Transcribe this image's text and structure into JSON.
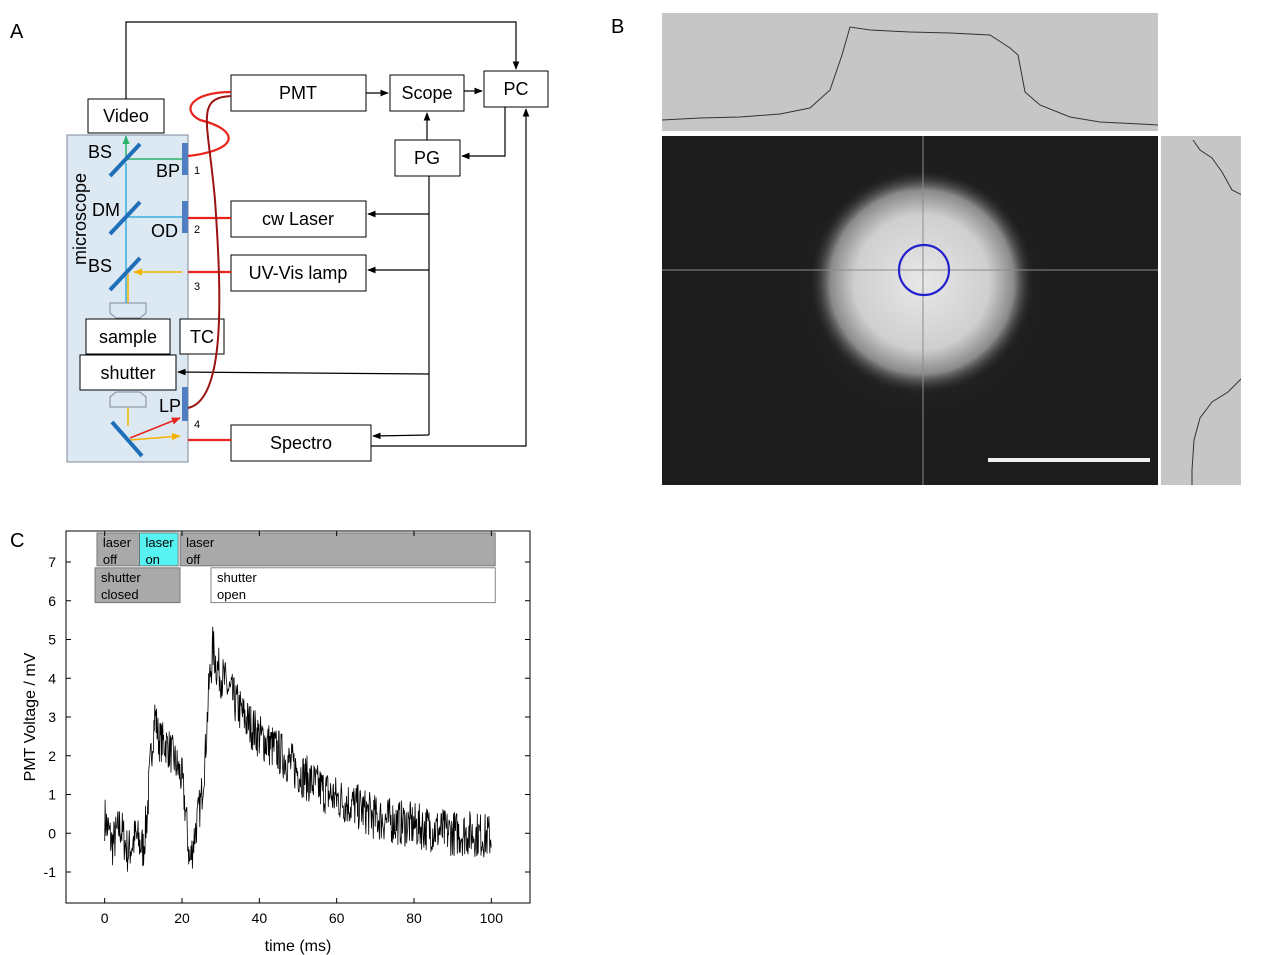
{
  "panels": {
    "a": {
      "letter": "A",
      "microscope_label": "microscope",
      "boxes": {
        "video": "Video",
        "pmt": "PMT",
        "scope": "Scope",
        "pc": "PC",
        "pg": "PG",
        "cw_laser": "cw Laser",
        "uv_lamp": "UV-Vis lamp",
        "sample": "sample",
        "tc": "TC",
        "shutter": "shutter",
        "spectro": "Spectro"
      },
      "optics": {
        "bs1": "BS",
        "bp": "BP",
        "dm": "DM",
        "od": "OD",
        "bs2": "BS",
        "lp": "LP"
      },
      "ports": [
        "1",
        "2",
        "3",
        "4"
      ]
    },
    "b": {
      "letter": "B"
    },
    "c": {
      "letter": "C"
    }
  },
  "chart_data": {
    "type": "line",
    "xlabel": "time (ms)",
    "ylabel": "PMT Voltage / mV",
    "xlim": [
      -10,
      110
    ],
    "ylim": [
      -1.8,
      7.8
    ],
    "xticks": [
      0,
      20,
      40,
      60,
      80,
      100
    ],
    "yticks": [
      -1,
      0,
      1,
      2,
      3,
      4,
      5,
      6,
      7
    ],
    "series_points": [
      [
        0,
        0.4
      ],
      [
        2,
        -0.3
      ],
      [
        4,
        0.2
      ],
      [
        6,
        -0.5
      ],
      [
        8,
        -0.1
      ],
      [
        10,
        -0.4
      ],
      [
        11,
        0.5
      ],
      [
        12,
        2.0
      ],
      [
        13,
        3.1
      ],
      [
        14,
        2.4
      ],
      [
        16,
        2.3
      ],
      [
        18,
        1.9
      ],
      [
        20,
        1.4
      ],
      [
        21,
        0.5
      ],
      [
        22,
        -0.8
      ],
      [
        23,
        -0.2
      ],
      [
        25,
        0.9
      ],
      [
        26,
        2.0
      ],
      [
        27,
        3.8
      ],
      [
        28,
        4.8
      ],
      [
        29,
        4.3
      ],
      [
        32,
        3.7
      ],
      [
        36,
        3.0
      ],
      [
        40,
        2.5
      ],
      [
        45,
        2.1
      ],
      [
        50,
        1.6
      ],
      [
        55,
        1.2
      ],
      [
        60,
        0.9
      ],
      [
        65,
        0.7
      ],
      [
        70,
        0.4
      ],
      [
        75,
        0.3
      ],
      [
        80,
        0.2
      ],
      [
        85,
        0.1
      ],
      [
        90,
        0.0
      ],
      [
        95,
        0.0
      ],
      [
        100,
        -0.1
      ]
    ],
    "annotations": {
      "laser_off_1": [
        "laser",
        "off"
      ],
      "laser_on": [
        "laser",
        "on"
      ],
      "laser_off_2": [
        "laser",
        "off"
      ],
      "shutter_closed": [
        "shutter",
        "closed"
      ],
      "shutter_open": [
        "shutter",
        "open"
      ]
    },
    "annotation_colors": {
      "laser_off": "#a9a9a9",
      "laser_on": "#57f2f2",
      "shutter_closed": "#a9a9a9",
      "shutter_open": "#ffffff"
    }
  },
  "colors": {
    "red_fiber": "#e8231b",
    "dark_red_fiber": "#9b1313",
    "green_beam": "#2db36b",
    "cyan_beam": "#39aedc",
    "yellow_beam": "#f5b300",
    "mirror_blue": "#1f6fb8",
    "microscope_fill": "#dce8f2",
    "circle_blue": "#2222cc"
  }
}
